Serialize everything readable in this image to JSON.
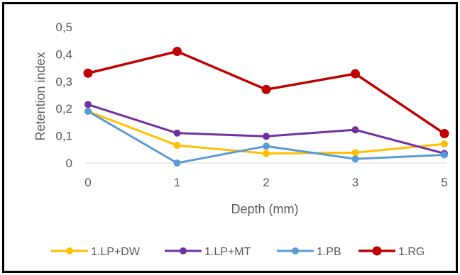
{
  "chart_data": {
    "type": "line",
    "title": "",
    "xlabel": "Depth (mm)",
    "ylabel": "Retention index",
    "categories": [
      "0",
      "1",
      "2",
      "3",
      "5"
    ],
    "ylim": [
      0,
      0.5
    ],
    "yticks": [
      "0",
      "0,1",
      "0,2",
      "0,3",
      "0,4",
      "0,5"
    ],
    "ytick_values": [
      0,
      0.1,
      0.2,
      0.3,
      0.4,
      0.5
    ],
    "grid": false,
    "legend_position": "bottom",
    "series": [
      {
        "name": "1.LP+DW",
        "color": "#FFC000",
        "marker": "medium",
        "values": [
          0.19,
          0.065,
          0.035,
          0.038,
          0.07
        ]
      },
      {
        "name": "1.LP+MT",
        "color": "#7030A0",
        "marker": "medium",
        "values": [
          0.215,
          0.11,
          0.098,
          0.122,
          0.035
        ]
      },
      {
        "name": "1.PB",
        "color": "#5B9BD5",
        "marker": "medium",
        "values": [
          0.19,
          0.0,
          0.062,
          0.015,
          0.03
        ]
      },
      {
        "name": "1.RG",
        "color": "#C00000",
        "marker": "large",
        "values": [
          0.33,
          0.41,
          0.27,
          0.328,
          0.108
        ]
      }
    ]
  }
}
